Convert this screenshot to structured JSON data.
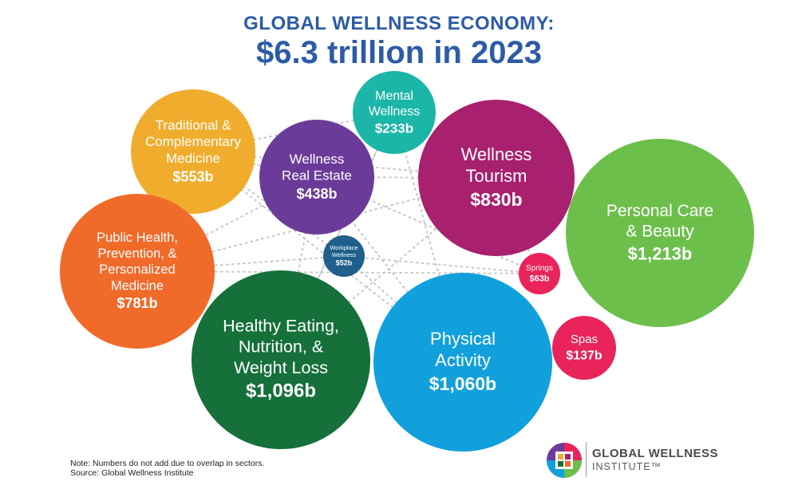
{
  "title": {
    "line1": "GLOBAL WELLNESS ECONOMY:",
    "line2": "$6.3 trillion in 2023"
  },
  "chart_data": {
    "type": "bubble",
    "title": "GLOBAL WELLNESS ECONOMY: $6.3 trillion in 2023",
    "unit": "billion USD",
    "categories": [
      {
        "id": "traditional",
        "label_lines": [
          "Traditional &",
          "Complementary",
          "Medicine"
        ],
        "value": 553,
        "value_label": "$553b",
        "color": "#f0ad2d"
      },
      {
        "id": "real-estate",
        "label_lines": [
          "Wellness",
          "Real Estate"
        ],
        "value": 438,
        "value_label": "$438b",
        "color": "#6b3b99"
      },
      {
        "id": "mental",
        "label_lines": [
          "Mental",
          "Wellness"
        ],
        "value": 233,
        "value_label": "$233b",
        "color": "#1cb6a8"
      },
      {
        "id": "tourism",
        "label_lines": [
          "Wellness",
          "Tourism"
        ],
        "value": 830,
        "value_label": "$830b",
        "color": "#a8206e"
      },
      {
        "id": "personal-care",
        "label_lines": [
          "Personal Care",
          "& Beauty"
        ],
        "value": 1213,
        "value_label": "$1,213b",
        "color": "#6cbf4b"
      },
      {
        "id": "public-health",
        "label_lines": [
          "Public Health,",
          "Prevention, &",
          "Personalized",
          "Medicine"
        ],
        "value": 781,
        "value_label": "$781b",
        "color": "#f06a2a"
      },
      {
        "id": "workplace",
        "label_lines": [
          "Workplace",
          "Wellness"
        ],
        "value": 52,
        "value_label": "$52b",
        "color": "#1e5f8c"
      },
      {
        "id": "springs",
        "label_lines": [
          "Springs"
        ],
        "value": 63,
        "value_label": "$63b",
        "color": "#e8245a"
      },
      {
        "id": "healthy-eating",
        "label_lines": [
          "Healthy Eating,",
          "Nutrition, &",
          "Weight Loss"
        ],
        "value": 1096,
        "value_label": "$1,096b",
        "color": "#15703a"
      },
      {
        "id": "physical-activity",
        "label_lines": [
          "Physical",
          "Activity"
        ],
        "value": 1060,
        "value_label": "$1,060b",
        "color": "#12a0dc"
      },
      {
        "id": "spas",
        "label_lines": [
          "Spas"
        ],
        "value": 137,
        "value_label": "$137b",
        "color": "#e8245a"
      }
    ]
  },
  "note": {
    "line1": "Note: Numbers do not add due to overlap in sectors.",
    "line2": "Source: Global Wellness Institute"
  },
  "logo": {
    "name": "GLOBAL WELLNESS",
    "sub": "INSTITUTE™",
    "icon": "gwi-logo-icon"
  }
}
